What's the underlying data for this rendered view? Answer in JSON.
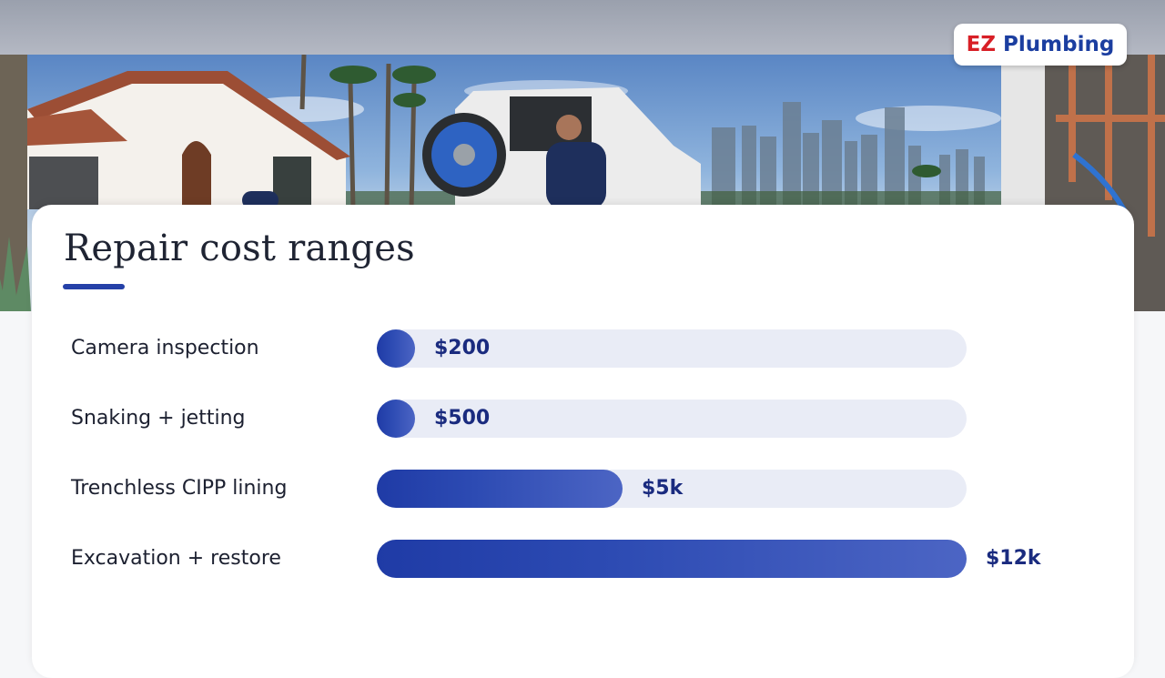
{
  "brand": {
    "logo_part1": "EZ",
    "logo_part2": "Plumbing",
    "accent_color": "#1f3ba6",
    "logo_red": "#d81f26"
  },
  "chart_data": {
    "type": "bar",
    "orientation": "horizontal",
    "title": "Repair cost ranges",
    "categories": [
      "Camera inspection",
      "Snaking + jetting",
      "Trenchless CIPP lining",
      "Excavation + restore"
    ],
    "values": [
      200,
      500,
      5000,
      12000
    ],
    "value_labels": [
      "$200",
      "$500",
      "$5k",
      "$12k"
    ],
    "xlim": [
      0,
      12000
    ],
    "grid": false,
    "legend": "none"
  }
}
